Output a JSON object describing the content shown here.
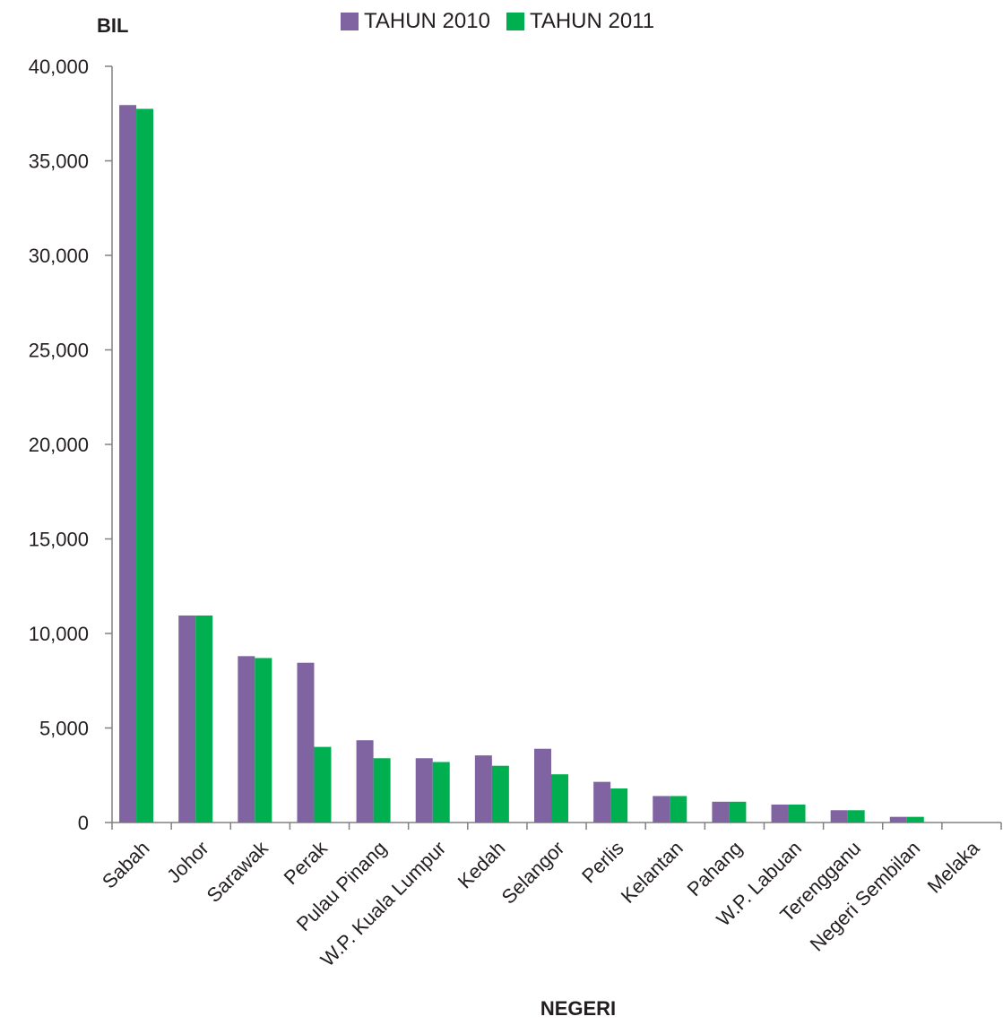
{
  "chart_data": {
    "type": "bar",
    "ylabel": "BIL",
    "xlabel": "NEGERI",
    "ylim": [
      0,
      40000
    ],
    "yticks": [
      0,
      5000,
      10000,
      15000,
      20000,
      25000,
      30000,
      35000,
      40000
    ],
    "ytick_labels": [
      "0",
      "5,000",
      "10,000",
      "15,000",
      "20,000",
      "25,000",
      "30,000",
      "35,000",
      "40,000"
    ],
    "legend_position": "top-center",
    "grid": false,
    "categories": [
      "Sabah",
      "Johor",
      "Sarawak",
      "Perak",
      "Pulau Pinang",
      "W.P. Kuala Lumpur",
      "Kedah",
      "Selangor",
      "Perlis",
      "Kelantan",
      "Pahang",
      "W.P. Labuan",
      "Terengganu",
      "Negeri Sembilan",
      "Melaka"
    ],
    "series": [
      {
        "name": "TAHUN 2010",
        "color": "#8064a2",
        "values": [
          37950,
          10950,
          8800,
          8450,
          4350,
          3400,
          3550,
          3900,
          2150,
          1400,
          1100,
          950,
          650,
          300,
          0
        ]
      },
      {
        "name": "TAHUN 2011",
        "color": "#00b050",
        "values": [
          37750,
          10950,
          8700,
          4000,
          3400,
          3200,
          3000,
          2550,
          1800,
          1400,
          1100,
          950,
          650,
          300,
          0
        ]
      }
    ]
  }
}
